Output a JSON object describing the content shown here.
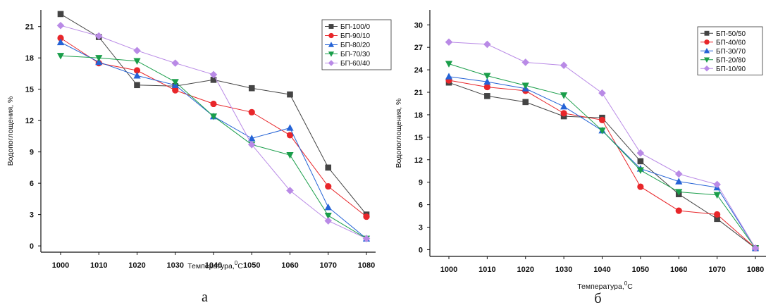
{
  "chart_data": [
    {
      "type": "line",
      "panel_label": "а",
      "xlabel": "Температура,",
      "xlabel_sup": "0",
      "xlabel_unit": "С",
      "ylabel": "Водопоглощения, %",
      "x": [
        1000,
        1010,
        1020,
        1030,
        1040,
        1050,
        1060,
        1070,
        1080
      ],
      "yticks": [
        0,
        3,
        6,
        9,
        12,
        15,
        18,
        21
      ],
      "ylim": [
        -0.6,
        22.6
      ],
      "legend_position": "top-right",
      "series": [
        {
          "name": "БП-100/0",
          "marker": "square",
          "color": "#444444",
          "values": [
            22.2,
            20.0,
            15.4,
            15.3,
            15.9,
            15.1,
            14.5,
            7.5,
            3.0
          ]
        },
        {
          "name": "БП-90/10",
          "marker": "circle",
          "color": "#e8262a",
          "values": [
            19.9,
            17.5,
            16.8,
            14.9,
            13.6,
            12.8,
            10.6,
            5.7,
            2.8
          ]
        },
        {
          "name": "БП-80/20",
          "marker": "triangle-up",
          "color": "#2563d6",
          "values": [
            19.5,
            17.6,
            16.3,
            15.4,
            12.4,
            10.3,
            11.3,
            3.7,
            0.7
          ]
        },
        {
          "name": "БП-70/30",
          "marker": "triangle-down",
          "color": "#1a9e4a",
          "values": [
            18.2,
            18.0,
            17.7,
            15.7,
            12.4,
            9.7,
            8.7,
            2.9,
            0.7
          ]
        },
        {
          "name": "БП-60/40",
          "marker": "diamond",
          "color": "#b98ae6",
          "values": [
            21.1,
            20.1,
            18.7,
            17.5,
            16.4,
            9.7,
            5.3,
            2.4,
            0.7
          ]
        }
      ]
    },
    {
      "type": "line",
      "panel_label": "б",
      "xlabel": "Температура,",
      "xlabel_sup": "0",
      "xlabel_unit": "С",
      "ylabel": "Водопоглощения, %",
      "x": [
        1000,
        1010,
        1020,
        1030,
        1040,
        1050,
        1060,
        1070,
        1080
      ],
      "yticks": [
        0,
        3,
        6,
        9,
        12,
        15,
        18,
        21,
        24,
        27,
        30
      ],
      "ylim": [
        -0.9,
        32.0
      ],
      "legend_position": "top-right",
      "series": [
        {
          "name": "БП-50/50",
          "marker": "square",
          "color": "#444444",
          "values": [
            22.3,
            20.5,
            19.7,
            17.8,
            17.6,
            11.8,
            7.4,
            4.1,
            0.2
          ]
        },
        {
          "name": "БП-40/60",
          "marker": "circle",
          "color": "#e8262a",
          "values": [
            22.6,
            21.7,
            21.2,
            18.2,
            17.3,
            8.4,
            5.2,
            4.7,
            0.2
          ]
        },
        {
          "name": "БП-30/70",
          "marker": "triangle-up",
          "color": "#2563d6",
          "values": [
            23.1,
            22.4,
            21.5,
            19.1,
            15.9,
            10.8,
            9.1,
            8.3,
            0.2
          ]
        },
        {
          "name": "БП-20/80",
          "marker": "triangle-down",
          "color": "#1a9e4a",
          "values": [
            24.8,
            23.2,
            21.9,
            20.6,
            15.9,
            10.6,
            7.7,
            7.3,
            0.2
          ]
        },
        {
          "name": "БП-10/90",
          "marker": "diamond",
          "color": "#b98ae6",
          "values": [
            27.7,
            27.4,
            25.0,
            24.6,
            20.9,
            12.9,
            10.1,
            8.7,
            0.2
          ]
        }
      ]
    }
  ]
}
